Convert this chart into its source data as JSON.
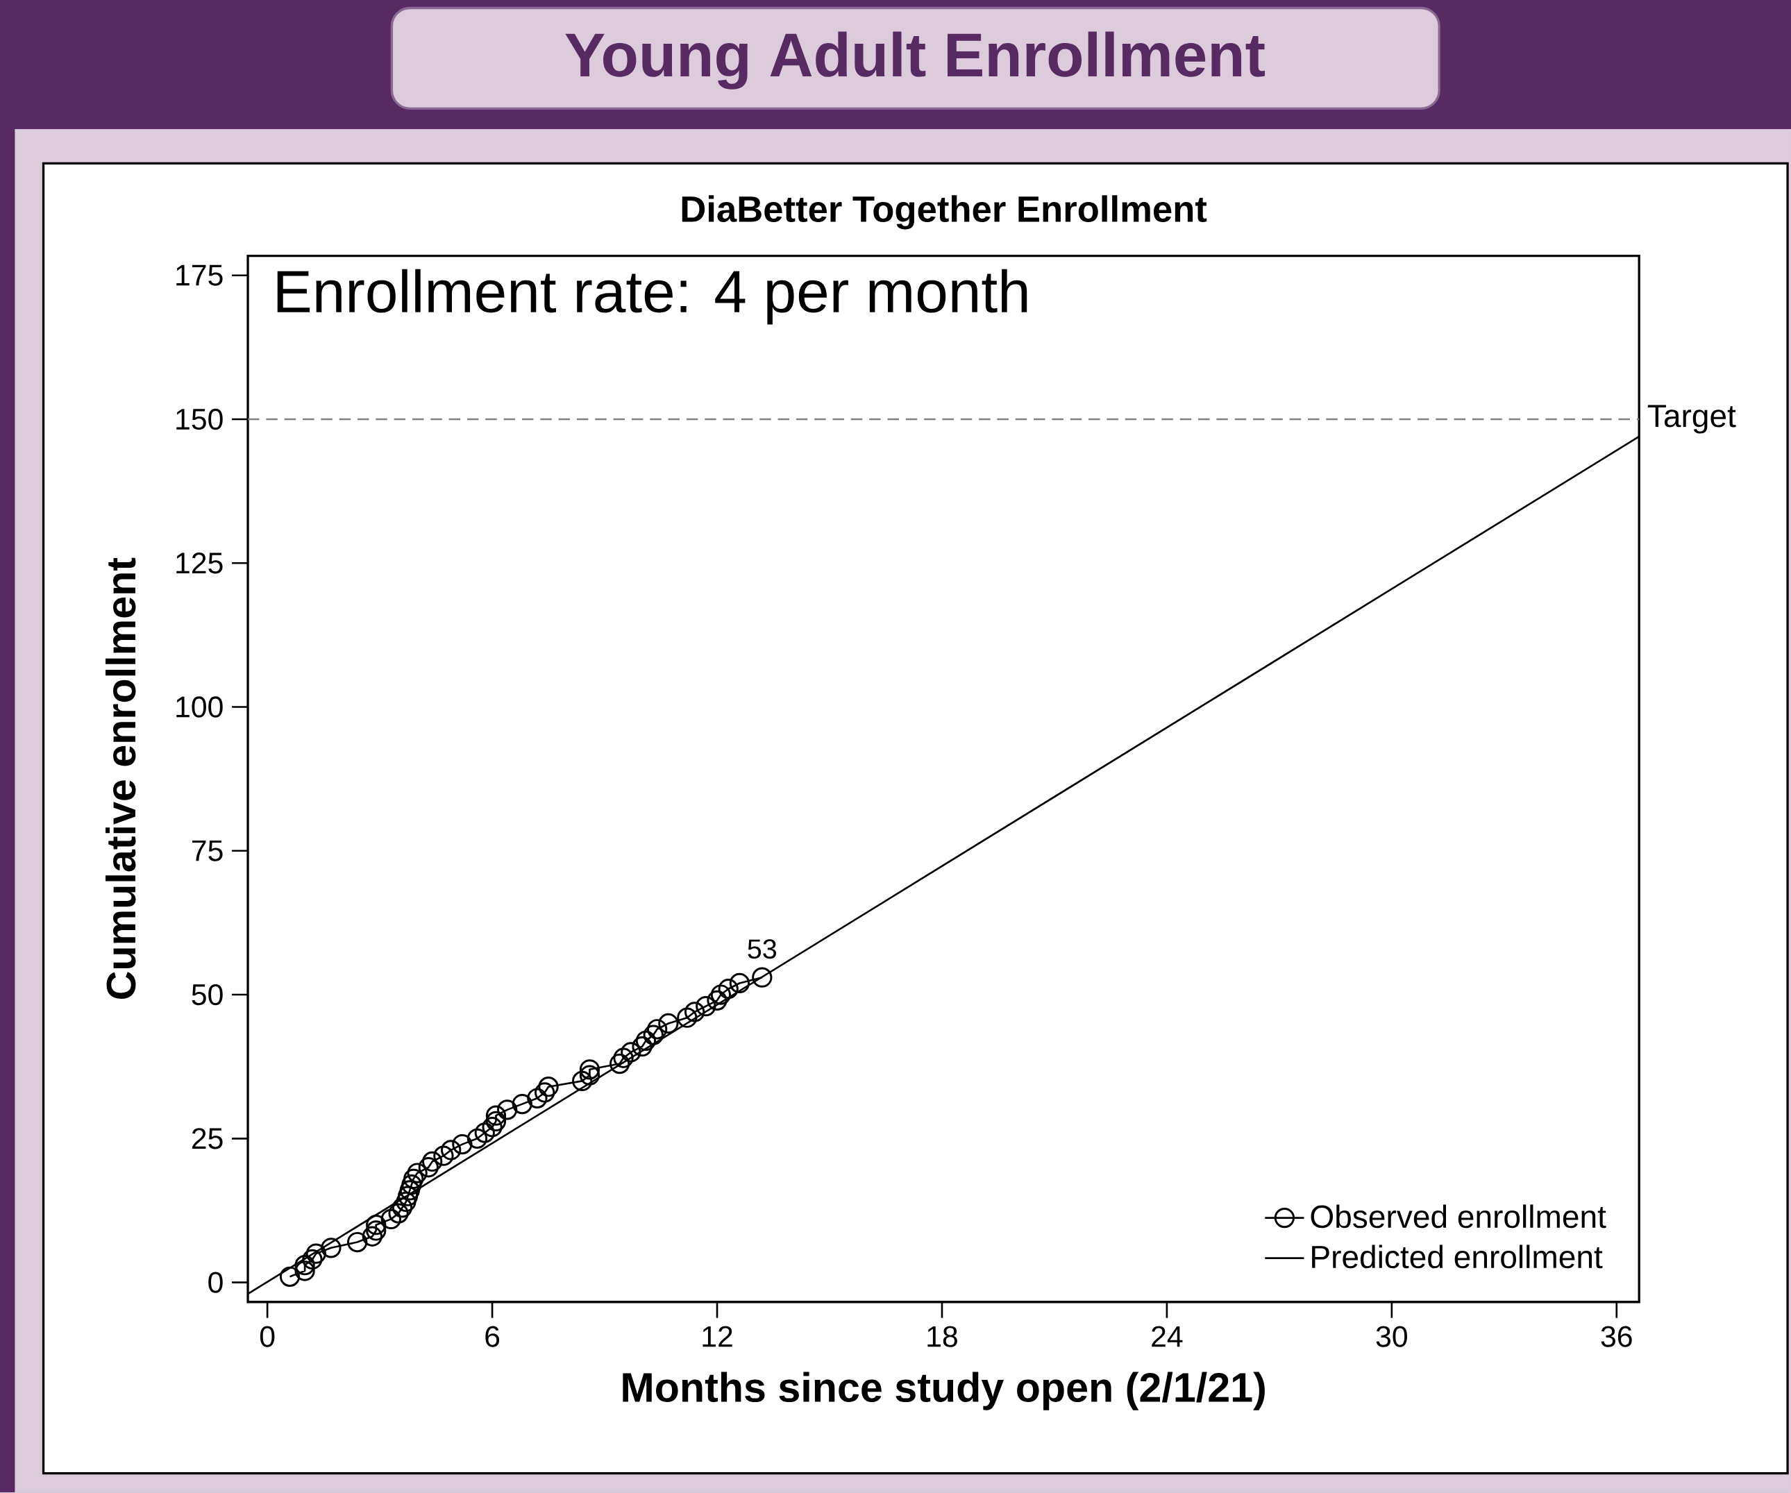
{
  "chart_data": {
    "type": "line",
    "title": "Young Adult Enrollment",
    "subtitle": "DiaBetter Together Enrollment",
    "xlabel": "Months since study open (2/1/21)",
    "ylabel": "Cumulative enrollment",
    "xlim": [
      -0.52,
      36.6
    ],
    "ylim": [
      -3.4,
      178.4
    ],
    "xticks": [
      0,
      6,
      12,
      18,
      24,
      30,
      36
    ],
    "yticks": [
      0,
      25,
      50,
      75,
      100,
      125,
      150,
      175
    ],
    "grid": false,
    "legend": "bottom right",
    "marker": "circle",
    "series": [
      {
        "name": "Observed enrollment",
        "color": "#000000",
        "x": [
          0.6,
          1.0,
          1.0,
          1.2,
          1.3,
          1.7,
          2.4,
          2.8,
          2.9,
          2.9,
          3.3,
          3.5,
          3.6,
          3.7,
          3.75,
          3.8,
          3.85,
          3.9,
          4.0,
          4.3,
          4.4,
          4.7,
          4.9,
          5.2,
          5.6,
          5.8,
          6.0,
          6.1,
          6.1,
          6.4,
          6.8,
          7.2,
          7.4,
          7.5,
          8.4,
          8.6,
          8.6,
          9.4,
          9.5,
          9.7,
          10.0,
          10.1,
          10.3,
          10.4,
          10.7,
          11.2,
          11.4,
          11.7,
          12.0,
          12.1,
          12.3,
          12.6,
          13.2
        ],
        "values": [
          1,
          2,
          3,
          4,
          5,
          6,
          7,
          8,
          9,
          10,
          11,
          12,
          13,
          14,
          15,
          16,
          17,
          18,
          19,
          20,
          21,
          22,
          23,
          24,
          25,
          26,
          27,
          28,
          29,
          30,
          31,
          32,
          33,
          34,
          35,
          36,
          37,
          38,
          39,
          40,
          41,
          42,
          43,
          44,
          45,
          46,
          47,
          48,
          49,
          50,
          51,
          52,
          53
        ]
      },
      {
        "name": "Predicted enrollment",
        "color": "#000000",
        "marker": "none",
        "x": [
          -0.52,
          36.6
        ],
        "values": [
          -2,
          147
        ]
      }
    ],
    "ref_lines": [
      {
        "axis": "y",
        "value": 150,
        "label": "Target",
        "color": "#808080",
        "line_style": "dashed"
      }
    ],
    "annotations": [
      "Enrollment rate: 4 per month",
      {
        "text": "53",
        "x": 13.2,
        "y": 53
      }
    ]
  }
}
